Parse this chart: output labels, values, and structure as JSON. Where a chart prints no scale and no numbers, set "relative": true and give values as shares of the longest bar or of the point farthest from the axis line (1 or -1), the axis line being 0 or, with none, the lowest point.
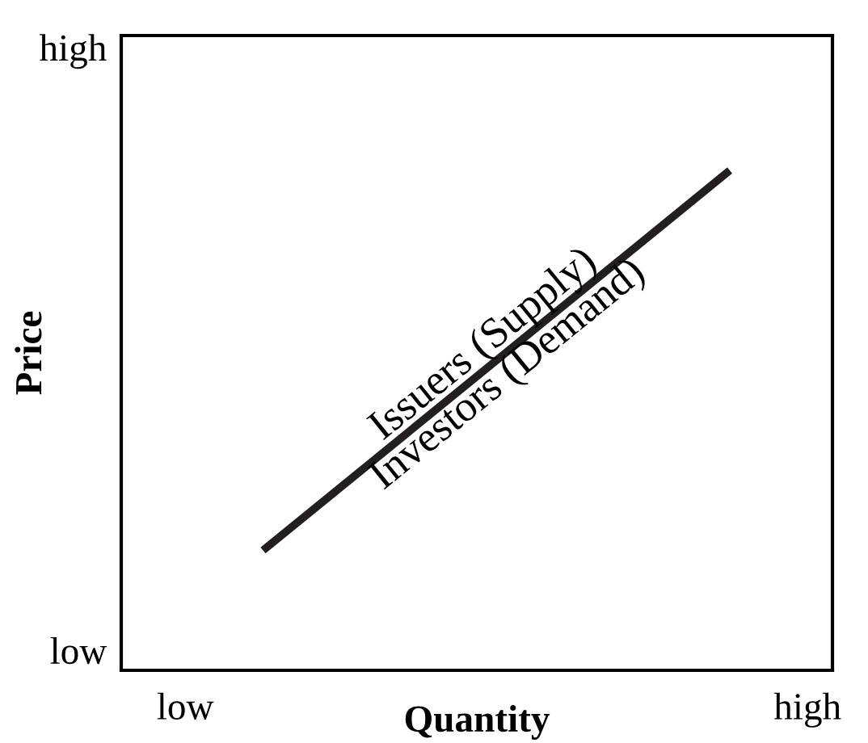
{
  "chart_data": {
    "type": "line",
    "xlabel": "Quantity",
    "ylabel": "Price",
    "relative": true,
    "categories": [
      "low",
      null,
      null,
      null,
      null,
      null,
      null,
      null,
      "high"
    ],
    "series": [
      {
        "color": "#231f20",
        "values": [
          null,
          0.24,
          null,
          null,
          null,
          null,
          null,
          1,
          null
        ]
      }
    ],
    "annotations": [
      "Issuers (Supply)",
      "Investors (Demand)",
      "high",
      "low"
    ],
    "grid": false,
    "legend": false,
    "marker": "none",
    "line_style": "solid"
  }
}
